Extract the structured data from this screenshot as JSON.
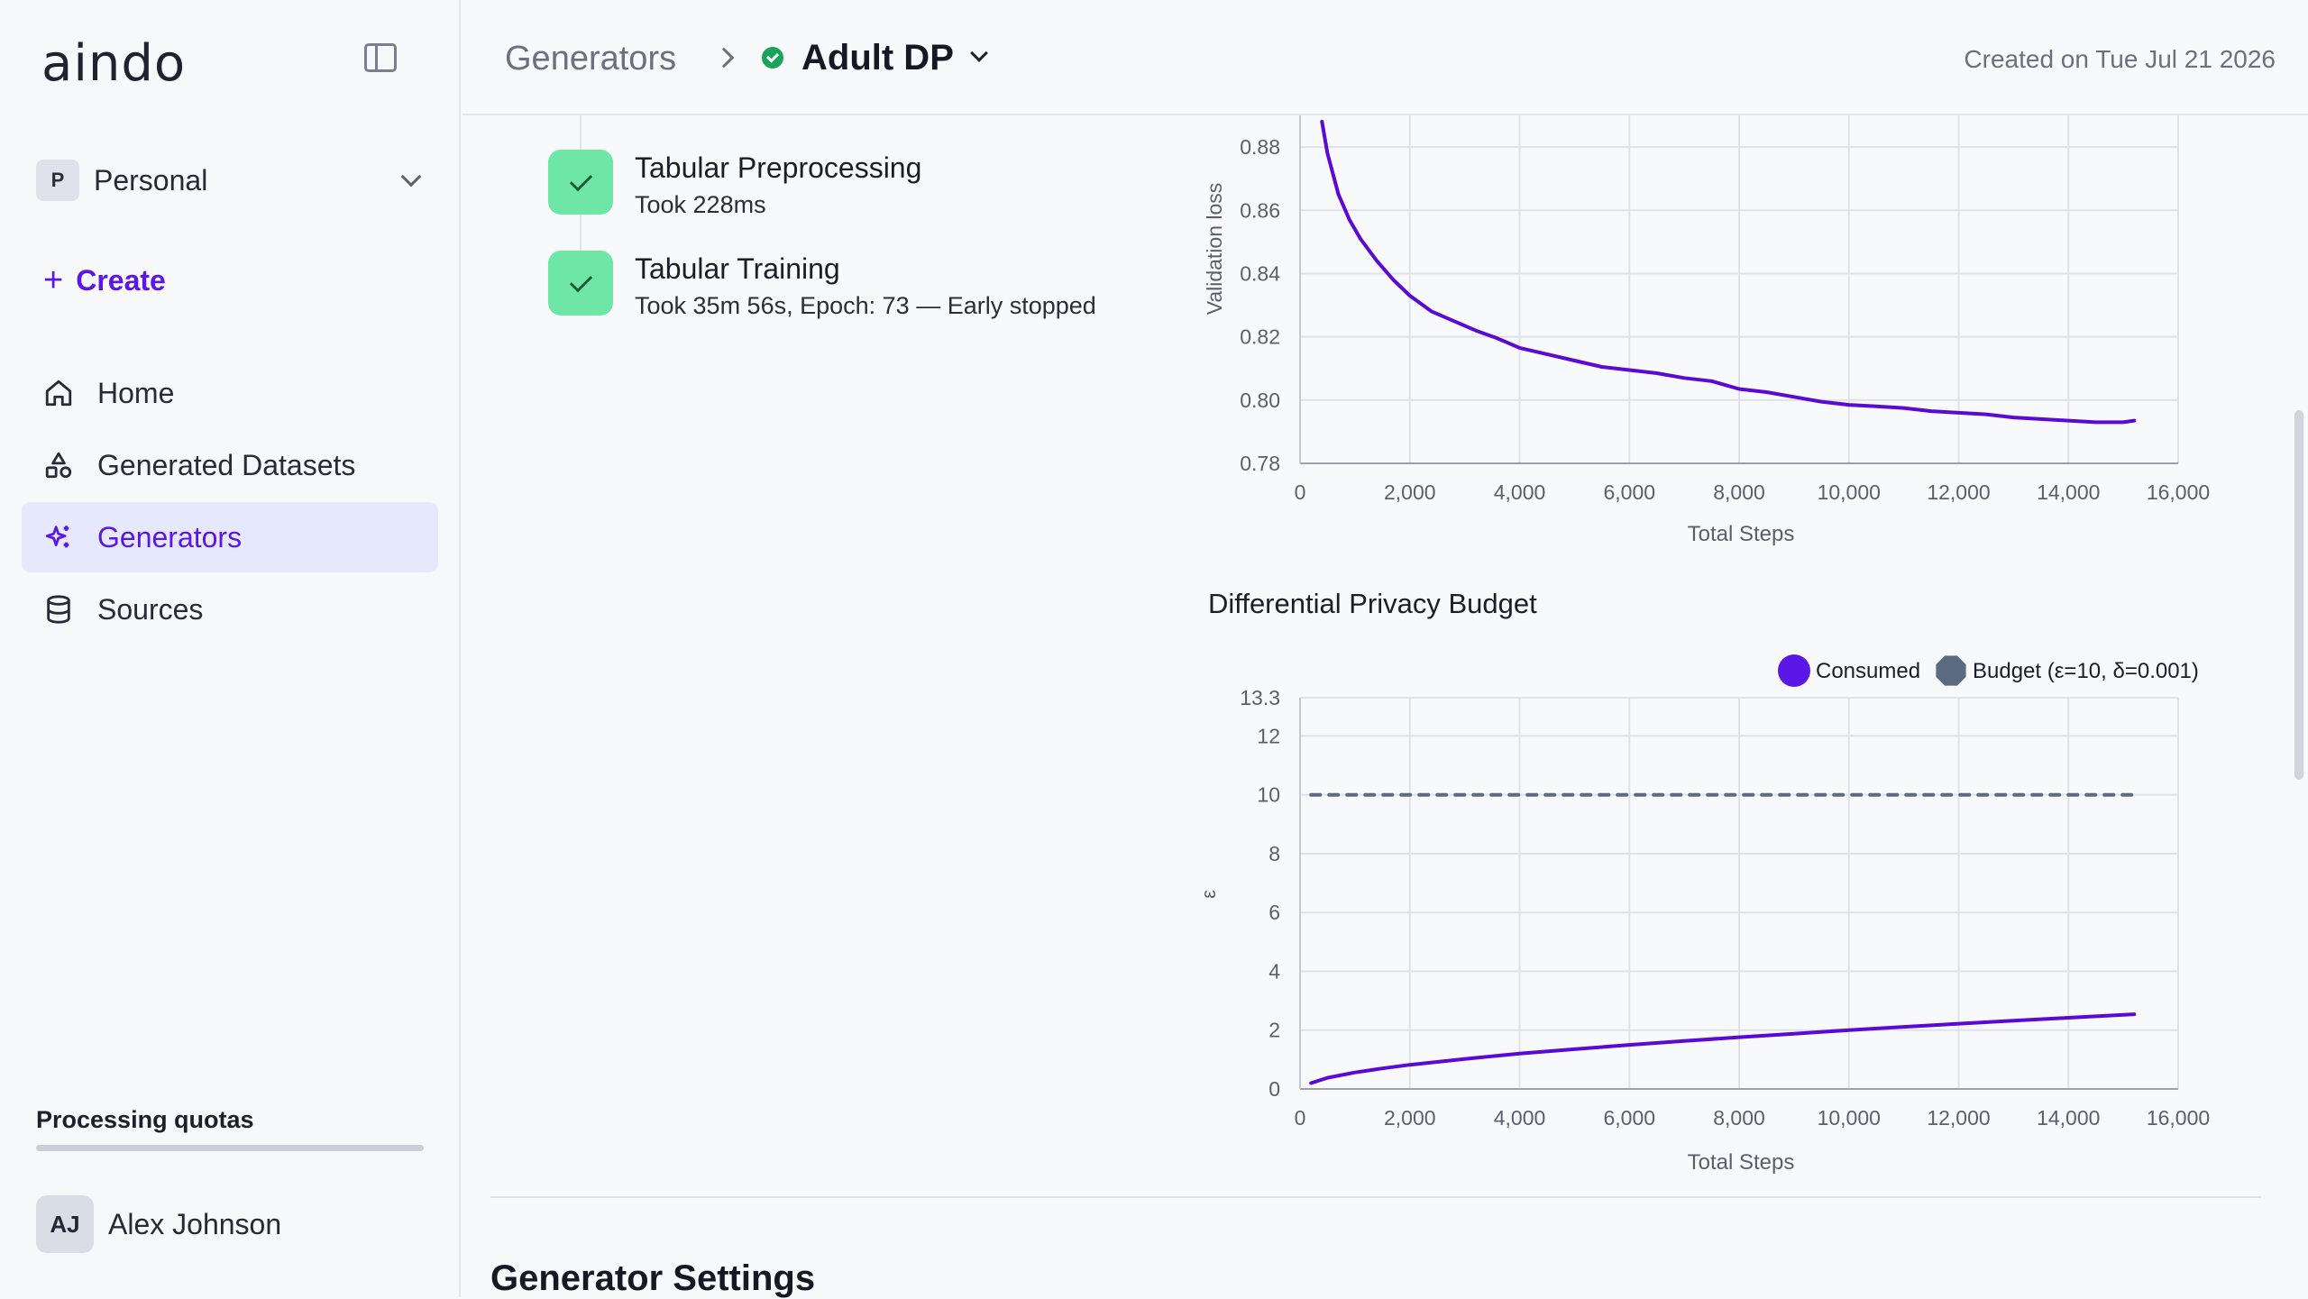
{
  "sidebar": {
    "logo": "aindo",
    "workspace": {
      "initial": "P",
      "name": "Personal"
    },
    "create_label": "Create",
    "nav": [
      {
        "label": "Home",
        "icon": "home-icon"
      },
      {
        "label": "Generated Datasets",
        "icon": "shapes-icon"
      },
      {
        "label": "Generators",
        "icon": "sparkles-icon",
        "active": true
      },
      {
        "label": "Sources",
        "icon": "database-icon"
      }
    ],
    "quota_label": "Processing quotas",
    "quota_fraction": 0.0,
    "user": {
      "initials": "AJ",
      "name": "Alex Johnson"
    }
  },
  "header": {
    "breadcrumb_root": "Generators",
    "title": "Adult DP",
    "status": "success",
    "created": "Created on Tue Jul 21 2026"
  },
  "steps": [
    {
      "title": "Tabular Preprocessing",
      "detail": "Took 228ms"
    },
    {
      "title": "Tabular Training",
      "detail": "Took 35m 56s, Epoch: 73 — Early stopped"
    }
  ],
  "colors": {
    "accent": "#5b17e6",
    "line": "#5b0ad6",
    "budget": "#5a6b82",
    "success": "#1aa35a",
    "step_check": "#6ee7a6"
  },
  "chart_data": [
    {
      "type": "line",
      "xlabel": "Total Steps",
      "ylabel": "Validation loss",
      "xlim": [
        0,
        16000
      ],
      "ylim": [
        0.78,
        0.89
      ],
      "xticks": [
        "0",
        "2,000",
        "4,000",
        "6,000",
        "8,000",
        "10,000",
        "12,000",
        "14,000",
        "16,000"
      ],
      "yticks": [
        "0.78",
        "0.80",
        "0.82",
        "0.84",
        "0.86",
        "0.88"
      ],
      "grid": true,
      "series": [
        {
          "x": [
            400,
            500,
            700,
            900,
            1100,
            1400,
            1700,
            2000,
            2400,
            2800,
            3200,
            3600,
            4000,
            4500,
            5000,
            5500,
            6000,
            6500,
            7000,
            7500,
            8000,
            8500,
            9000,
            9500,
            10000,
            10500,
            11000,
            11500,
            12000,
            12500,
            13000,
            13500,
            14000,
            14500,
            15000,
            15200
          ],
          "y": [
            0.888,
            0.878,
            0.865,
            0.857,
            0.851,
            0.844,
            0.838,
            0.833,
            0.828,
            0.825,
            0.822,
            0.8195,
            0.8165,
            0.8145,
            0.8125,
            0.8105,
            0.8095,
            0.8085,
            0.807,
            0.806,
            0.8035,
            0.8025,
            0.801,
            0.7995,
            0.7985,
            0.798,
            0.7975,
            0.7965,
            0.796,
            0.7955,
            0.7945,
            0.794,
            0.7935,
            0.793,
            0.793,
            0.7935
          ]
        }
      ]
    },
    {
      "type": "line",
      "title": "Differential Privacy Budget",
      "xlabel": "Total Steps",
      "ylabel": "ε",
      "xlim": [
        0,
        16000
      ],
      "ylim": [
        0,
        13.3
      ],
      "xticks": [
        "0",
        "2,000",
        "4,000",
        "6,000",
        "8,000",
        "10,000",
        "12,000",
        "14,000",
        "16,000"
      ],
      "yticks": [
        "0",
        "2",
        "4",
        "6",
        "8",
        "10",
        "12",
        "13.3"
      ],
      "grid": true,
      "legend": "top-right",
      "series": [
        {
          "name": "Consumed",
          "x": [
            200,
            500,
            1000,
            1500,
            2000,
            3000,
            4000,
            5000,
            6000,
            7000,
            8000,
            9000,
            10000,
            11000,
            12000,
            13000,
            14000,
            15200
          ],
          "y": [
            0.2,
            0.38,
            0.56,
            0.7,
            0.82,
            1.02,
            1.2,
            1.35,
            1.5,
            1.63,
            1.76,
            1.88,
            2.0,
            2.11,
            2.22,
            2.32,
            2.42,
            2.54
          ]
        },
        {
          "name": "Budget (ε=10, δ=0.001)",
          "x": [
            200,
            15200
          ],
          "y": [
            10,
            10
          ],
          "style": "dashed"
        }
      ]
    }
  ],
  "settings_title": "Generator Settings"
}
